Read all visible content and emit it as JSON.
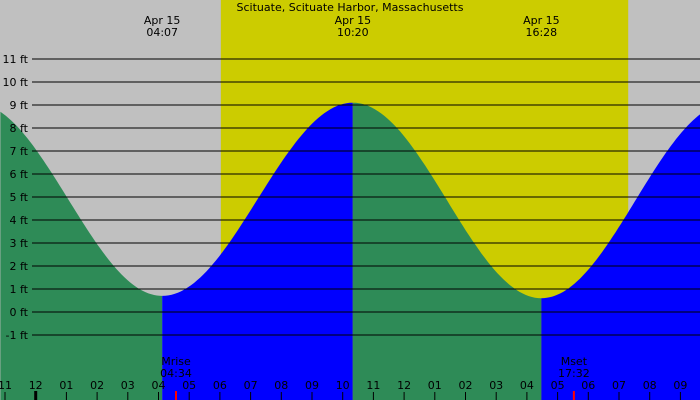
{
  "chart_data": {
    "type": "area",
    "title": "Scituate, Scituate Harbor, Massachusetts",
    "y_unit": "ft",
    "ylim": [
      -2,
      12
    ],
    "y_ticks": [
      11,
      10,
      9,
      8,
      7,
      6,
      5,
      4,
      3,
      2,
      1,
      0,
      -1
    ],
    "y_tick_labels": [
      "11 ft",
      "10 ft",
      "9 ft",
      "8 ft",
      "7 ft",
      "6 ft",
      "5 ft",
      "4 ft",
      "3 ft",
      "2 ft",
      "1 ft",
      "0 ft",
      "-1 ft"
    ],
    "xlim_hours": [
      23.0,
      33.3
    ],
    "x_tick_labels": [
      {
        "hour": 23,
        "label": "11"
      },
      {
        "hour": 24,
        "label": "12"
      },
      {
        "hour": 25,
        "label": "01"
      },
      {
        "hour": 26,
        "label": "02"
      },
      {
        "hour": 27,
        "label": "03"
      },
      {
        "hour": 28,
        "label": "04"
      },
      {
        "hour": 29,
        "label": "05"
      },
      {
        "hour": 30,
        "label": "06"
      },
      {
        "hour": 31,
        "label": "07"
      },
      {
        "hour": 32,
        "label": "08"
      },
      {
        "hour": 33,
        "label": "09"
      },
      {
        "hour": 34,
        "label": "10"
      },
      {
        "hour": 35,
        "label": "11"
      },
      {
        "hour": 36,
        "label": "12"
      },
      {
        "hour": 37,
        "label": "01"
      },
      {
        "hour": 38,
        "label": "02"
      },
      {
        "hour": 39,
        "label": "03"
      },
      {
        "hour": 40,
        "label": "04"
      },
      {
        "hour": 41,
        "label": "05"
      },
      {
        "hour": 42,
        "label": "06"
      },
      {
        "hour": 43,
        "label": "07"
      },
      {
        "hour": 44,
        "label": "08"
      },
      {
        "hour": 45,
        "label": "09"
      }
    ],
    "daylight": {
      "start_hour": 30.03,
      "end_hour": 43.3
    },
    "tides": [
      {
        "type": "low",
        "hour": 28.12,
        "height": 0.7,
        "date": "Apr 15",
        "time": "04:07"
      },
      {
        "type": "high",
        "hour": 34.33,
        "height": 9.1,
        "date": "Apr 15",
        "time": "10:20"
      },
      {
        "type": "low",
        "hour": 40.47,
        "height": 0.6,
        "date": "Apr 15",
        "time": "16:28"
      }
    ],
    "curve_start": {
      "hour": 23.0,
      "height": 8.6
    },
    "curve_end": {
      "hour": 45.0,
      "height": 8.7
    },
    "moon_events": [
      {
        "label": "Mrise",
        "time": "04:34",
        "hour": 28.57
      },
      {
        "label": "Mset",
        "time": "17:32",
        "hour": 41.53
      }
    ],
    "midnight_hour": 24,
    "colors": {
      "night": "#c0c0c0",
      "day": "#cccc00",
      "falling": "#2e8b57",
      "rising": "#0000ff",
      "moon_marker": "#ff0000"
    }
  }
}
